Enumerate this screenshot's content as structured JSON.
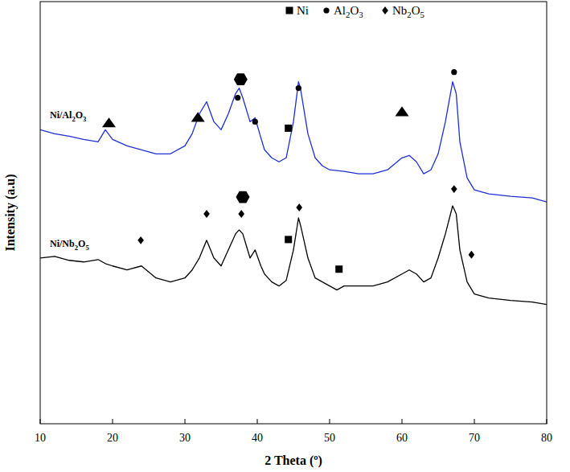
{
  "chart_data": {
    "type": "line",
    "x_label": "2 Theta (º)",
    "y_label": "Intensity (a.u)",
    "tick_labels": "x",
    "xlim": [
      10,
      80
    ],
    "xticks": [
      10,
      20,
      30,
      40,
      50,
      60,
      70,
      80
    ],
    "ylim": [
      0,
      527
    ],
    "yticks": [],
    "x": [
      10,
      12,
      14,
      16,
      18,
      19,
      20,
      22,
      24,
      26,
      28,
      30,
      31,
      32,
      33,
      34,
      35,
      36,
      37,
      37.5,
      38,
      39,
      39.7,
      40.5,
      41,
      42,
      43,
      44,
      45,
      45.7,
      46,
      47,
      48,
      49,
      50,
      51,
      52,
      54,
      56,
      58,
      60,
      61,
      62,
      63,
      64,
      65,
      66,
      67,
      67.5,
      68,
      69,
      70,
      72,
      75,
      78,
      80
    ],
    "series": [
      {
        "name": "Ni/Al2O3",
        "color": "#1f2fd6",
        "values": [
          367,
          362,
          359,
          355,
          352,
          367,
          355,
          347,
          342,
          337,
          337,
          347,
          362,
          387,
          402,
          377,
          367,
          387,
          412,
          419,
          407,
          377,
          382,
          357,
          342,
          332,
          327,
          332,
          377,
          427,
          417,
          362,
          332,
          322,
          317,
          316,
          315,
          312,
          312,
          317,
          332,
          335,
          327,
          312,
          317,
          337,
          377,
          427,
          412,
          352,
          307,
          292,
          287,
          284,
          282,
          277
        ]
      },
      {
        "name": "Ni/Nb2O5",
        "color": "#000000",
        "values": [
          207,
          209,
          204,
          202,
          205,
          200,
          197,
          192,
          197,
          182,
          177,
          182,
          192,
          207,
          229,
          207,
          197,
          217,
          237,
          242,
          237,
          207,
          217,
          197,
          187,
          177,
          172,
          179,
          217,
          257,
          247,
          207,
          182,
          177,
          172,
          167,
          172,
          172,
          172,
          177,
          187,
          192,
          187,
          177,
          182,
          207,
          237,
          272,
          262,
          217,
          177,
          162,
          157,
          154,
          152,
          149
        ]
      }
    ],
    "phase_legend": [
      {
        "label": "Ni",
        "marker": "square"
      },
      {
        "label": "Al2O3",
        "marker": "circle"
      },
      {
        "label": "Nb2O5",
        "marker": "diamond"
      }
    ],
    "annotations": [
      {
        "x": 19.5,
        "y": 375,
        "marker": "triangle"
      },
      {
        "x": 31.8,
        "y": 382,
        "marker": "triangle"
      },
      {
        "x": 37.7,
        "y": 430,
        "marker": "hexagon"
      },
      {
        "x": 37.3,
        "y": 407,
        "marker": "circle"
      },
      {
        "x": 39.7,
        "y": 377,
        "marker": "circle"
      },
      {
        "x": 44.3,
        "y": 369,
        "marker": "square"
      },
      {
        "x": 45.7,
        "y": 419,
        "marker": "circle"
      },
      {
        "x": 60,
        "y": 389,
        "marker": "triangle"
      },
      {
        "x": 67.2,
        "y": 439,
        "marker": "circle"
      },
      {
        "x": 23.9,
        "y": 229,
        "marker": "diamond"
      },
      {
        "x": 33,
        "y": 262,
        "marker": "diamond"
      },
      {
        "x": 38,
        "y": 283,
        "marker": "hexagon"
      },
      {
        "x": 37.8,
        "y": 262,
        "marker": "diamond"
      },
      {
        "x": 45.8,
        "y": 270,
        "marker": "diamond"
      },
      {
        "x": 44.3,
        "y": 230,
        "marker": "square"
      },
      {
        "x": 51.3,
        "y": 193,
        "marker": "square"
      },
      {
        "x": 67.2,
        "y": 293,
        "marker": "diamond"
      },
      {
        "x": 69.6,
        "y": 211,
        "marker": "diamond"
      }
    ]
  }
}
